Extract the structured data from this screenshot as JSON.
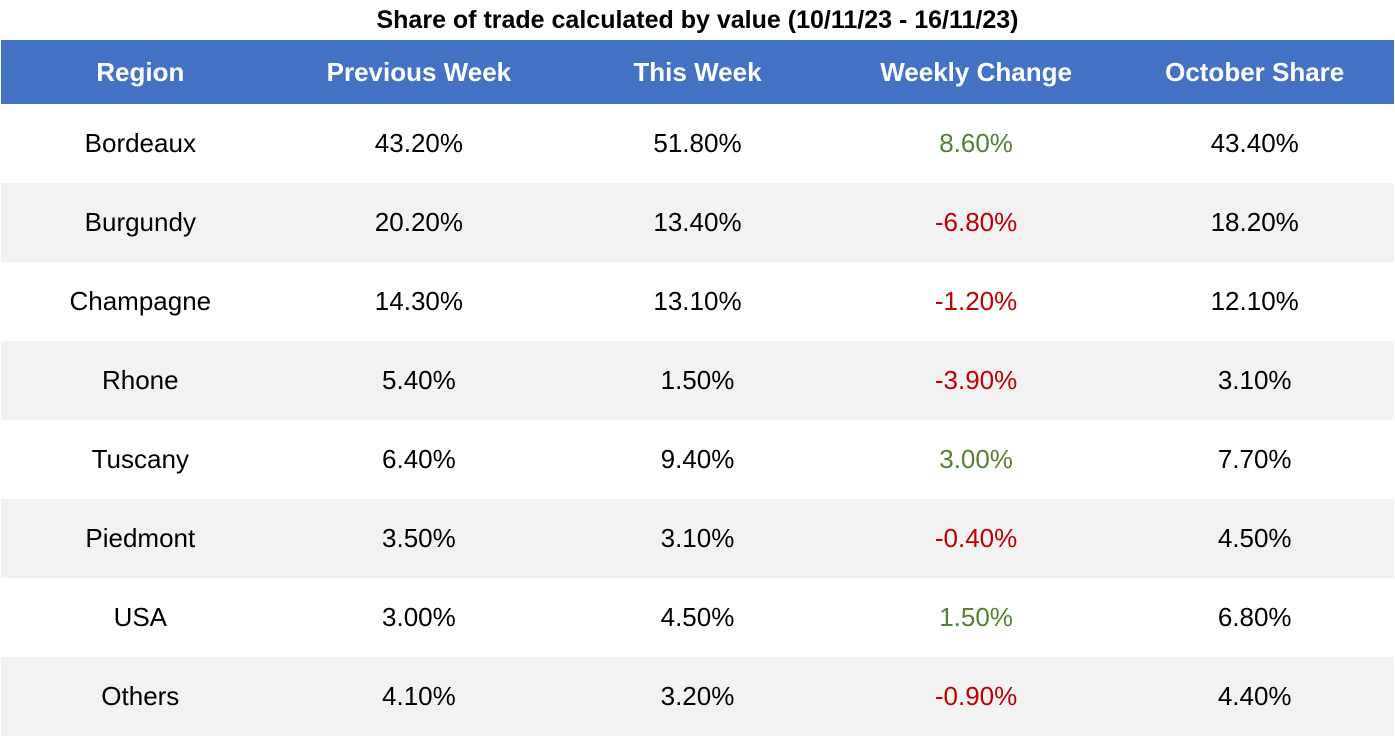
{
  "title": "Share of trade calculated by value (10/11/23 - 16/11/23)",
  "colors": {
    "header_bg": "#4472c4",
    "header_text": "#ffffff",
    "positive": "#548235",
    "negative": "#c00000",
    "stripe": "#f2f2f2"
  },
  "chart_data": {
    "type": "table",
    "title": "Share of trade calculated by value (10/11/23 - 16/11/23)",
    "columns": [
      "Region",
      "Previous Week",
      "This Week",
      "Weekly Change",
      "October Share"
    ],
    "rows": [
      [
        "Bordeaux",
        "43.20%",
        "51.80%",
        "8.60%",
        "43.40%"
      ],
      [
        "Burgundy",
        "20.20%",
        "13.40%",
        "-6.80%",
        "18.20%"
      ],
      [
        "Champagne",
        "14.30%",
        "13.10%",
        "-1.20%",
        "12.10%"
      ],
      [
        "Rhone",
        "5.40%",
        "1.50%",
        "-3.90%",
        "3.10%"
      ],
      [
        "Tuscany",
        "6.40%",
        "9.40%",
        "3.00%",
        "7.70%"
      ],
      [
        "Piedmont",
        "3.50%",
        "3.10%",
        "-0.40%",
        "4.50%"
      ],
      [
        "USA",
        "3.00%",
        "4.50%",
        "1.50%",
        "6.80%"
      ],
      [
        "Others",
        "4.10%",
        "3.20%",
        "-0.90%",
        "4.40%"
      ]
    ]
  }
}
